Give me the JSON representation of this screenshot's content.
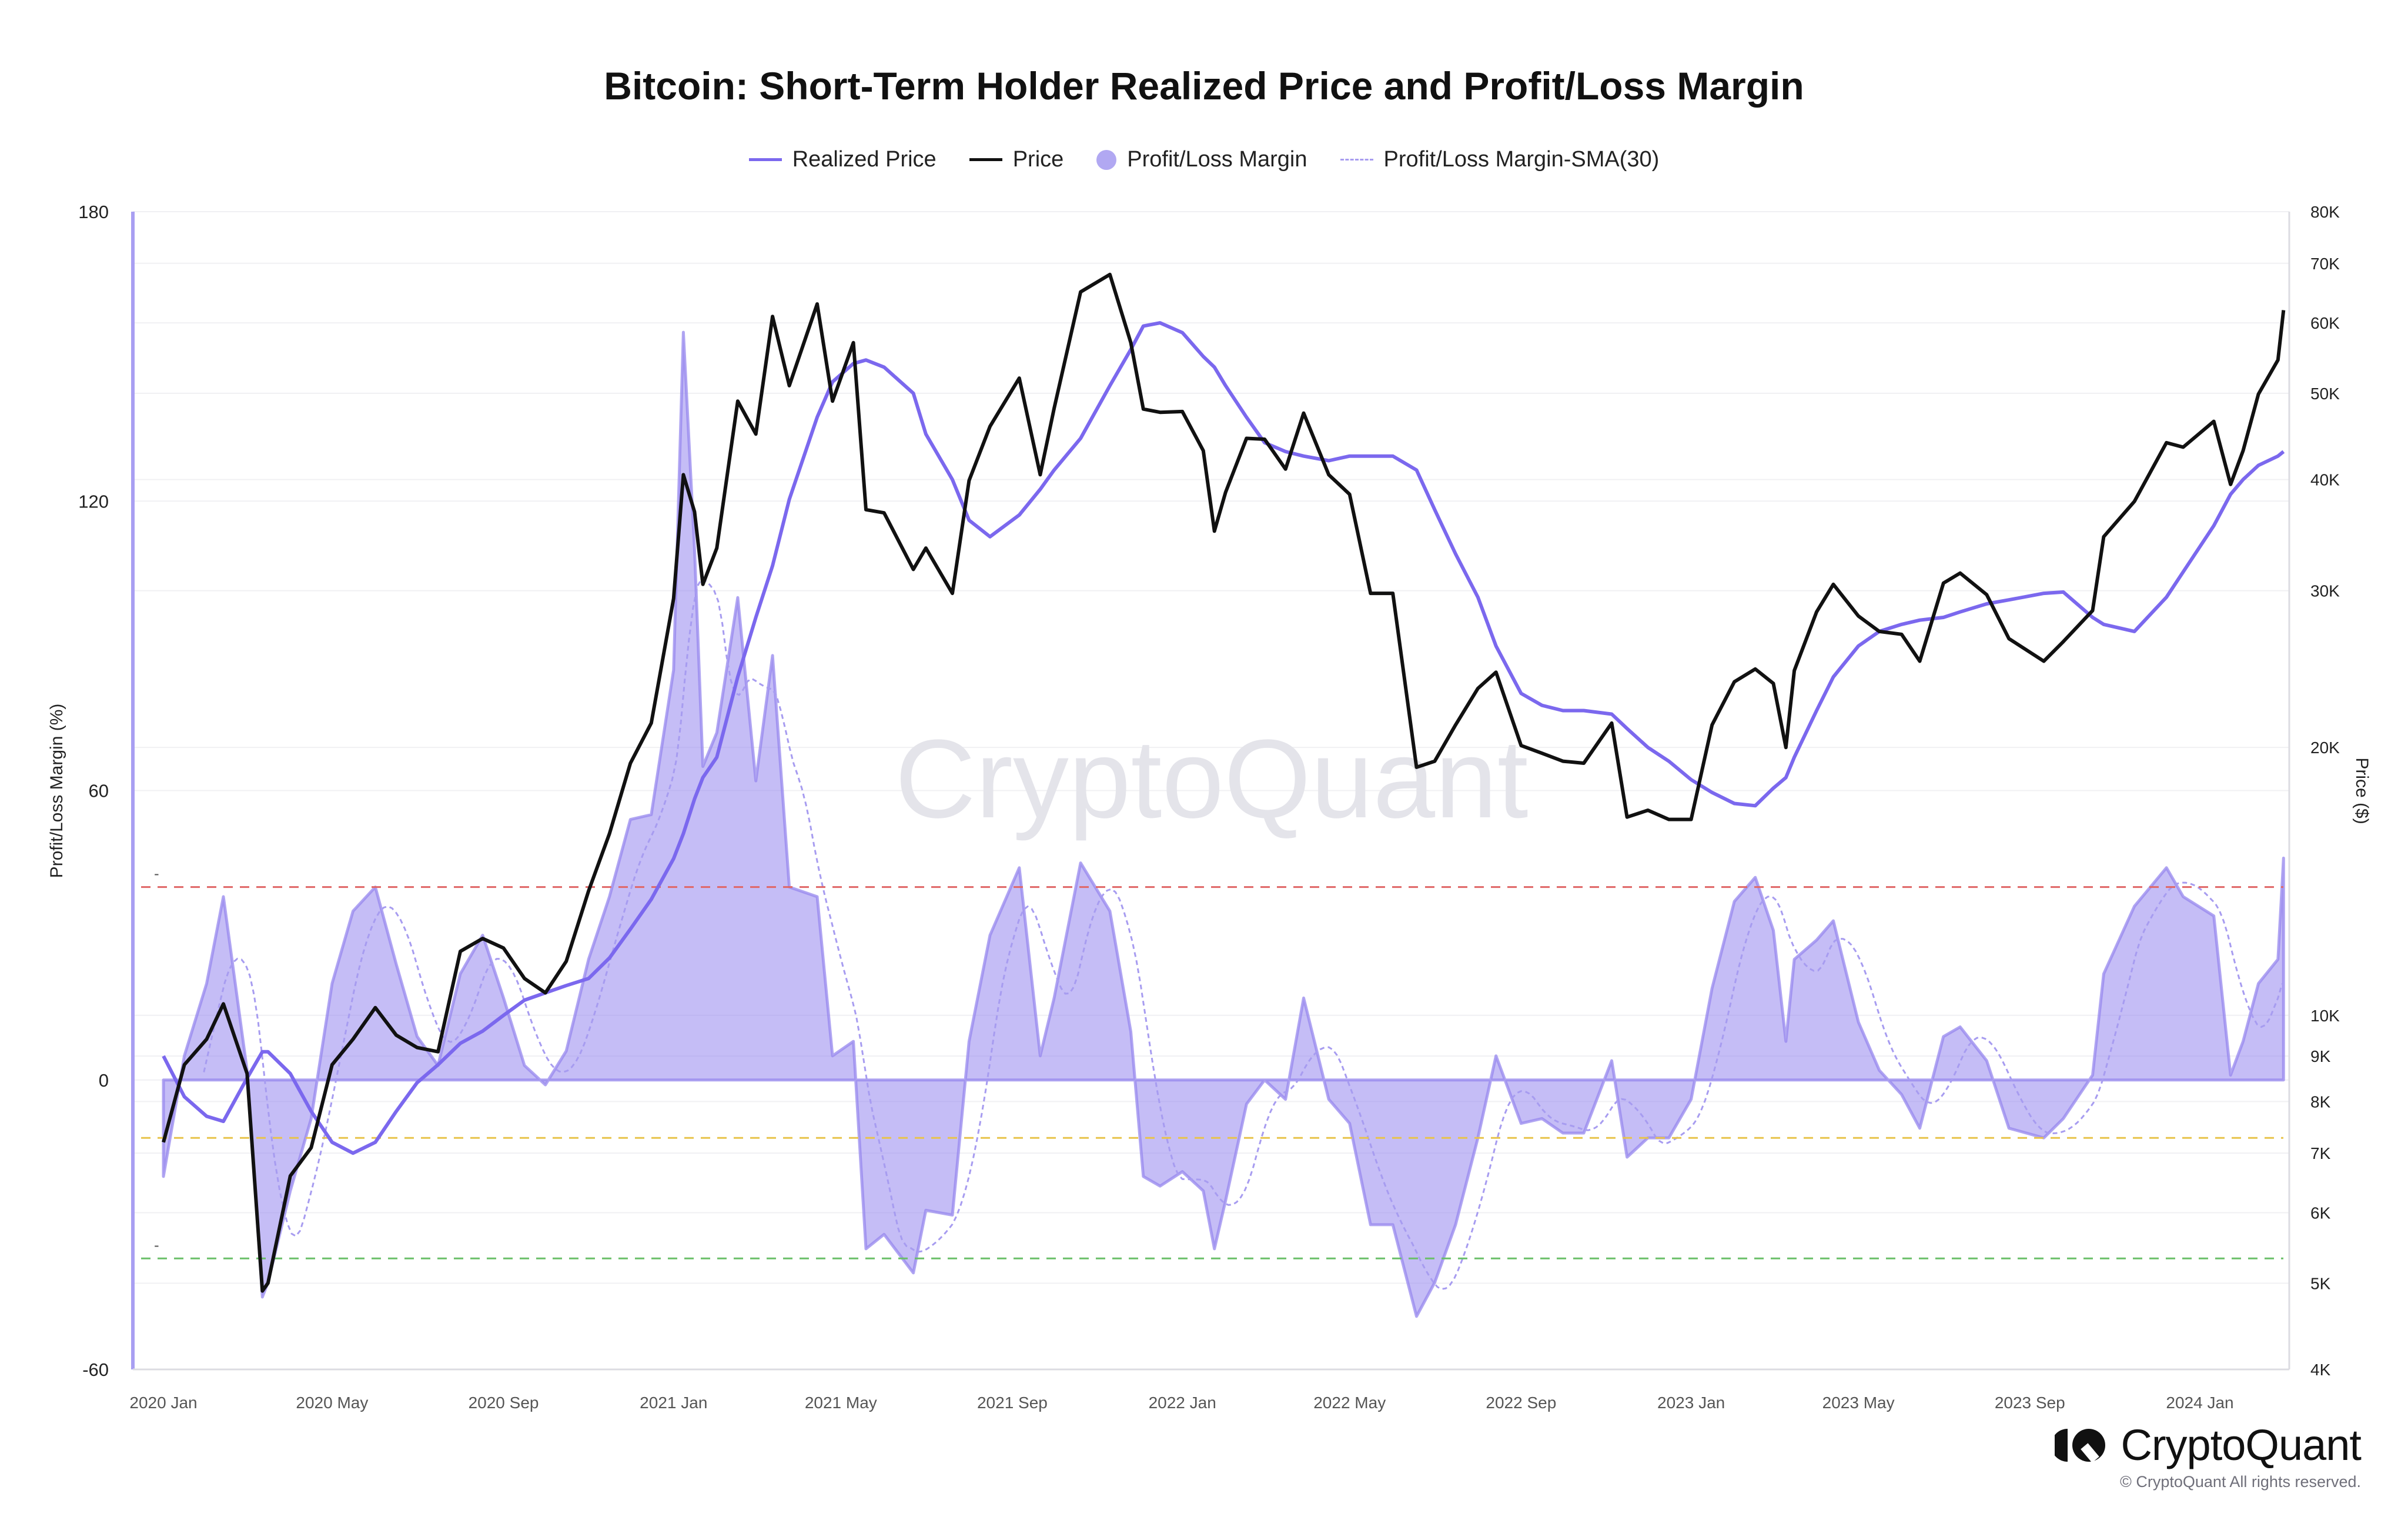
{
  "chart_data": {
    "type": "line",
    "title": "Bitcoin: Short-Term Holder Realized Price and Profit/Loss Margin",
    "legend": [
      {
        "name": "Realized Price",
        "color": "#7b68ee",
        "style": "line"
      },
      {
        "name": "Price",
        "color": "#111111",
        "style": "line"
      },
      {
        "name": "Profit/Loss Margin",
        "color": "#b1a8f2",
        "style": "area"
      },
      {
        "name": "Profit/Loss Margin-SMA(30)",
        "color": "#a79cf0",
        "style": "dashed"
      }
    ],
    "legend_position": "top-center",
    "ylabel_left": "Profit/Loss Margin (%)",
    "ylabel_right": "Price ($)",
    "ylim_left": [
      -60,
      180
    ],
    "left_ticks": [
      180,
      120,
      60,
      0,
      -60
    ],
    "ylim_right_thousands": [
      4,
      80
    ],
    "right_scale": "log",
    "right_ticks": [
      {
        "v": 80,
        "label": "80K"
      },
      {
        "v": 70,
        "label": "70K"
      },
      {
        "v": 60,
        "label": "60K"
      },
      {
        "v": 50,
        "label": "50K"
      },
      {
        "v": 40,
        "label": "40K"
      },
      {
        "v": 30,
        "label": "30K"
      },
      {
        "v": 20,
        "label": "20K"
      },
      {
        "v": 10,
        "label": "10K"
      },
      {
        "v": 9,
        "label": "9K"
      },
      {
        "v": 8,
        "label": "8K"
      },
      {
        "v": 7,
        "label": "7K"
      },
      {
        "v": 6,
        "label": "6K"
      },
      {
        "v": 5,
        "label": "5K"
      },
      {
        "v": 4,
        "label": "4K"
      }
    ],
    "x_ticks": [
      {
        "date": "2020-01-01",
        "label": "2020 Jan"
      },
      {
        "date": "2020-05-01",
        "label": "2020 May"
      },
      {
        "date": "2020-09-01",
        "label": "2020 Sep"
      },
      {
        "date": "2021-01-01",
        "label": "2021 Jan"
      },
      {
        "date": "2021-05-01",
        "label": "2021 May"
      },
      {
        "date": "2021-09-01",
        "label": "2021 Sep"
      },
      {
        "date": "2022-01-01",
        "label": "2022 Jan"
      },
      {
        "date": "2022-05-01",
        "label": "2022 May"
      },
      {
        "date": "2022-09-01",
        "label": "2022 Sep"
      },
      {
        "date": "2023-01-01",
        "label": "2023 Jan"
      },
      {
        "date": "2023-05-01",
        "label": "2023 May"
      },
      {
        "date": "2023-09-01",
        "label": "2023 Sep"
      },
      {
        "date": "2024-01-01",
        "label": "2024 Jan"
      }
    ],
    "thresholds": [
      {
        "value": 40,
        "color": "#e06666",
        "label": "-"
      },
      {
        "value": -12,
        "color": "#e8c34a",
        "label": ""
      },
      {
        "value": -37,
        "color": "#6abf69",
        "label": "-"
      }
    ],
    "sma_window_days": 30,
    "columns": [
      "date",
      "price_k",
      "realized_price_k",
      "margin_pct"
    ],
    "rows": [
      [
        "2020-01-01",
        7.2,
        9.0,
        -20
      ],
      [
        "2020-01-16",
        8.8,
        8.1,
        5
      ],
      [
        "2020-02-01",
        9.4,
        7.7,
        20
      ],
      [
        "2020-02-13",
        10.3,
        7.6,
        38
      ],
      [
        "2020-03-01",
        8.6,
        8.5,
        2
      ],
      [
        "2020-03-12",
        4.9,
        9.1,
        -45
      ],
      [
        "2020-03-16",
        5.0,
        9.1,
        -42
      ],
      [
        "2020-04-01",
        6.6,
        8.6,
        -23
      ],
      [
        "2020-04-16",
        7.1,
        7.8,
        -8
      ],
      [
        "2020-05-01",
        8.8,
        7.2,
        20
      ],
      [
        "2020-05-16",
        9.4,
        7.0,
        35
      ],
      [
        "2020-06-01",
        10.2,
        7.2,
        40
      ],
      [
        "2020-06-16",
        9.5,
        7.8,
        24
      ],
      [
        "2020-07-01",
        9.2,
        8.4,
        9
      ],
      [
        "2020-07-16",
        9.1,
        8.8,
        3
      ],
      [
        "2020-08-01",
        11.8,
        9.3,
        22
      ],
      [
        "2020-08-17",
        12.2,
        9.6,
        30
      ],
      [
        "2020-09-01",
        11.9,
        10.0,
        17
      ],
      [
        "2020-09-16",
        11.0,
        10.4,
        3
      ],
      [
        "2020-10-01",
        10.6,
        10.6,
        -1
      ],
      [
        "2020-10-16",
        11.5,
        10.8,
        6
      ],
      [
        "2020-11-01",
        13.8,
        11.0,
        25
      ],
      [
        "2020-11-16",
        16.0,
        11.6,
        38
      ],
      [
        "2020-12-01",
        19.2,
        12.5,
        54
      ],
      [
        "2020-12-16",
        21.3,
        13.5,
        55
      ],
      [
        "2021-01-01",
        29.4,
        15.0,
        85
      ],
      [
        "2021-01-08",
        40.5,
        16.0,
        155
      ],
      [
        "2021-01-16",
        36.8,
        17.5,
        110
      ],
      [
        "2021-01-22",
        30.5,
        18.5,
        65
      ],
      [
        "2021-02-01",
        33.5,
        19.5,
        72
      ],
      [
        "2021-02-16",
        49.0,
        24.0,
        100
      ],
      [
        "2021-03-01",
        45.0,
        28.0,
        62
      ],
      [
        "2021-03-13",
        61.0,
        32.0,
        88
      ],
      [
        "2021-03-25",
        51.0,
        38.0,
        40
      ],
      [
        "2021-04-14",
        63.0,
        47.0,
        38
      ],
      [
        "2021-04-25",
        49.0,
        51.5,
        5
      ],
      [
        "2021-05-10",
        57.0,
        54.0,
        8
      ],
      [
        "2021-05-19",
        37.0,
        54.5,
        -35
      ],
      [
        "2021-06-01",
        36.7,
        53.5,
        -32
      ],
      [
        "2021-06-22",
        31.7,
        50.0,
        -40
      ],
      [
        "2021-07-01",
        33.5,
        45.0,
        -27
      ],
      [
        "2021-07-20",
        29.8,
        40.0,
        -28
      ],
      [
        "2021-08-01",
        39.9,
        36.0,
        8
      ],
      [
        "2021-08-16",
        45.9,
        34.5,
        30
      ],
      [
        "2021-09-06",
        52.0,
        36.5,
        44
      ],
      [
        "2021-09-21",
        40.5,
        39.0,
        5
      ],
      [
        "2021-10-01",
        48.1,
        41.0,
        17
      ],
      [
        "2021-10-20",
        65.0,
        44.5,
        45
      ],
      [
        "2021-11-10",
        68.0,
        51.0,
        35
      ],
      [
        "2021-11-25",
        57.0,
        56.0,
        10
      ],
      [
        "2021-12-04",
        48.0,
        59.5,
        -20
      ],
      [
        "2021-12-16",
        47.6,
        60.0,
        -22
      ],
      [
        "2022-01-01",
        47.7,
        58.5,
        -19
      ],
      [
        "2022-01-16",
        43.1,
        55.0,
        -23
      ],
      [
        "2022-01-24",
        35.0,
        53.5,
        -35
      ],
      [
        "2022-02-01",
        38.7,
        51.0,
        -25
      ],
      [
        "2022-02-16",
        44.5,
        47.0,
        -5
      ],
      [
        "2022-03-01",
        44.4,
        44.0,
        0
      ],
      [
        "2022-03-16",
        41.1,
        43.0,
        -4
      ],
      [
        "2022-03-29",
        47.5,
        42.5,
        17
      ],
      [
        "2022-04-16",
        40.5,
        42.0,
        -4
      ],
      [
        "2022-05-01",
        38.5,
        42.5,
        -9
      ],
      [
        "2022-05-16",
        29.8,
        42.5,
        -30
      ],
      [
        "2022-06-01",
        29.8,
        42.5,
        -30
      ],
      [
        "2022-06-18",
        19.0,
        41.0,
        -49
      ],
      [
        "2022-07-01",
        19.3,
        37.0,
        -42
      ],
      [
        "2022-07-16",
        21.2,
        33.0,
        -30
      ],
      [
        "2022-08-01",
        23.3,
        29.5,
        -12
      ],
      [
        "2022-08-14",
        24.3,
        26.0,
        5
      ],
      [
        "2022-09-01",
        20.1,
        23.0,
        -9
      ],
      [
        "2022-09-16",
        19.7,
        22.3,
        -8
      ],
      [
        "2022-10-01",
        19.3,
        22.0,
        -11
      ],
      [
        "2022-10-16",
        19.2,
        22.0,
        -11
      ],
      [
        "2022-11-05",
        21.3,
        21.8,
        4
      ],
      [
        "2022-11-16",
        16.7,
        21.0,
        -16
      ],
      [
        "2022-12-01",
        17.0,
        20.0,
        -12
      ],
      [
        "2022-12-16",
        16.6,
        19.3,
        -12
      ],
      [
        "2023-01-01",
        16.6,
        18.4,
        -4
      ],
      [
        "2023-01-16",
        21.2,
        17.8,
        19
      ],
      [
        "2023-02-01",
        23.7,
        17.3,
        37
      ],
      [
        "2023-02-16",
        24.5,
        17.2,
        42
      ],
      [
        "2023-03-01",
        23.6,
        18.0,
        31
      ],
      [
        "2023-03-10",
        20.0,
        18.5,
        8
      ],
      [
        "2023-03-16",
        24.4,
        19.5,
        25
      ],
      [
        "2023-04-01",
        28.4,
        22.0,
        29
      ],
      [
        "2023-04-13",
        30.5,
        24.0,
        33
      ],
      [
        "2023-05-01",
        28.1,
        26.0,
        12
      ],
      [
        "2023-05-16",
        27.0,
        27.0,
        2
      ],
      [
        "2023-06-01",
        26.8,
        27.5,
        -3
      ],
      [
        "2023-06-14",
        25.0,
        27.8,
        -10
      ],
      [
        "2023-07-01",
        30.6,
        28.0,
        9
      ],
      [
        "2023-07-13",
        31.4,
        28.4,
        11
      ],
      [
        "2023-08-01",
        29.7,
        29.0,
        4
      ],
      [
        "2023-08-17",
        26.5,
        29.3,
        -10
      ],
      [
        "2023-09-11",
        25.0,
        29.8,
        -12
      ],
      [
        "2023-09-25",
        26.3,
        29.9,
        -8
      ],
      [
        "2023-10-16",
        28.5,
        28.0,
        1
      ],
      [
        "2023-10-24",
        34.5,
        27.5,
        22
      ],
      [
        "2023-11-15",
        37.8,
        27.0,
        36
      ],
      [
        "2023-12-08",
        44.0,
        29.5,
        44
      ],
      [
        "2023-12-20",
        43.5,
        31.5,
        38
      ],
      [
        "2024-01-11",
        46.5,
        35.5,
        34
      ],
      [
        "2024-01-23",
        39.5,
        38.5,
        1
      ],
      [
        "2024-02-01",
        43.1,
        40.0,
        8
      ],
      [
        "2024-02-12",
        49.9,
        41.5,
        20
      ],
      [
        "2024-02-26",
        54.5,
        42.5,
        25
      ],
      [
        "2024-03-01",
        62.0,
        43.0,
        46
      ]
    ]
  },
  "watermark": "CryptoQuant",
  "branding": {
    "logo_text": "CryptoQuant",
    "copyright": "© CryptoQuant All rights reserved."
  }
}
